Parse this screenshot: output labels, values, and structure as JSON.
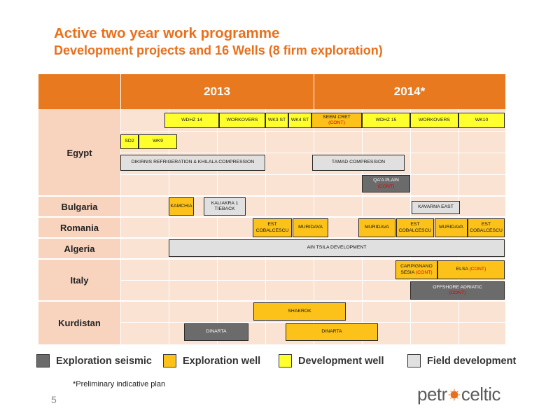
{
  "title": "Active two year work programme",
  "subtitle": "Development projects and 16 Wells (8 firm exploration)",
  "years": [
    {
      "label": "2013"
    },
    {
      "label": "2014*"
    }
  ],
  "countries": [
    {
      "name": "Egypt"
    },
    {
      "name": "Bulgaria"
    },
    {
      "name": "Romania"
    },
    {
      "name": "Algeria"
    },
    {
      "name": "Italy"
    },
    {
      "name": "Kurdistan"
    }
  ],
  "activities": [
    {
      "label": "WDHZ 14",
      "type": "development"
    },
    {
      "label": "WORKOVERS",
      "type": "development"
    },
    {
      "label": "WK3 ST",
      "type": "development"
    },
    {
      "label": "WK4 ST",
      "type": "development"
    },
    {
      "label": "SEEM CRET",
      "cont": "(CONT)",
      "type": "exploration"
    },
    {
      "label": "WDHZ 15",
      "type": "development"
    },
    {
      "label": "WORKOVERS",
      "type": "development"
    },
    {
      "label": "WK10",
      "type": "development"
    },
    {
      "label": "SD2",
      "type": "development"
    },
    {
      "label": "WK9",
      "type": "development"
    },
    {
      "label": "DIKIRNIS REFRIGERATION & KHILALA COMPRESSION",
      "type": "field"
    },
    {
      "label": "TAMAD COMPRESSION",
      "type": "field"
    },
    {
      "label": "QA'A PLAIN",
      "cont": "(CONT)",
      "type": "seismic"
    },
    {
      "label": "KAMCHIA",
      "type": "exploration"
    },
    {
      "label": "KALIAKRA 1 TIEBACK",
      "type": "field"
    },
    {
      "label": "KAVARNA EAST",
      "type": "field"
    },
    {
      "label": "EST COBALCESCU",
      "type": "exploration"
    },
    {
      "label": "MURIDAVA",
      "type": "exploration"
    },
    {
      "label": "MURIDAVA",
      "type": "exploration"
    },
    {
      "label": "EST COBALCESCU",
      "type": "exploration"
    },
    {
      "label": "MURIDAVA",
      "type": "exploration"
    },
    {
      "label": "EST COBALCESCU",
      "type": "exploration"
    },
    {
      "label": "AIN TSILA DEVELOPMENT",
      "type": "field"
    },
    {
      "label": "CARPIGNANO SESIA",
      "cont": "(CONT)",
      "type": "exploration"
    },
    {
      "label": "ELSA",
      "cont": "(CONT)",
      "type": "exploration"
    },
    {
      "label": "OFFSHORE ADRIATIC",
      "cont": "(CONT)",
      "type": "seismic"
    },
    {
      "label": "SHAKROK",
      "type": "exploration"
    },
    {
      "label": "DINARTA",
      "type": "seismic"
    },
    {
      "label": "DINARTA",
      "type": "exploration"
    }
  ],
  "legend": [
    {
      "label": "Exploration seismic",
      "color": "#6b6b6b"
    },
    {
      "label": "Exploration well",
      "color": "#fcc21a"
    },
    {
      "label": "Development well",
      "color": "#ffff2e"
    },
    {
      "label": "Field development",
      "color": "#e0e0e0"
    }
  ],
  "footnote": "*Preliminary indicative plan",
  "page_number": "5",
  "logo": {
    "before": "petr",
    "after": "celtic",
    "color": "#5b5b5b",
    "accent": "#e8701d"
  },
  "colors": {
    "header": "#e8791f",
    "title": "#e8701d",
    "row_bg": "#fbe3d4",
    "country_bg": "#f8d4bf"
  }
}
